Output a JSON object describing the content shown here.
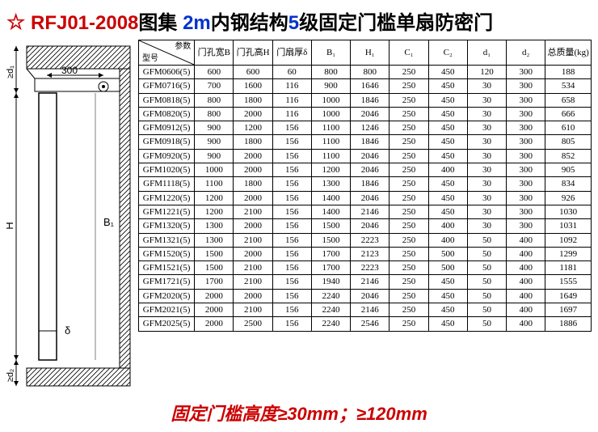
{
  "title": {
    "star": "☆",
    "part1_red": "RFJ01-2008",
    "part1b_black": "图集",
    "part2_blue": "2m",
    "part2b_black": "内钢结构",
    "part3_blue": "5",
    "part3b_black": "级固定门槛单扇防密门"
  },
  "diagram": {
    "dim_300": "300",
    "label_d1": "≥d₁",
    "label_B1": "B₁",
    "label_H": "H",
    "label_delta": "δ",
    "label_d2": "≥d₂",
    "hatch_color": "#000"
  },
  "table": {
    "corner_param": "参数",
    "corner_model": "型号",
    "headers": [
      "门孔宽B",
      "门孔高H",
      "门扇厚δ",
      "B₁",
      "H₁",
      "C₁",
      "C₂",
      "d₁",
      "d₂",
      "总质量(kg)"
    ],
    "rows": [
      [
        "GFM0606(5)",
        "600",
        "600",
        "60",
        "800",
        "800",
        "250",
        "450",
        "120",
        "300",
        "188"
      ],
      [
        "GFM0716(5)",
        "700",
        "1600",
        "116",
        "900",
        "1646",
        "250",
        "450",
        "30",
        "300",
        "534"
      ],
      [
        "GFM0818(5)",
        "800",
        "1800",
        "116",
        "1000",
        "1846",
        "250",
        "450",
        "30",
        "300",
        "658"
      ],
      [
        "GFM0820(5)",
        "800",
        "2000",
        "116",
        "1000",
        "2046",
        "250",
        "450",
        "30",
        "300",
        "666"
      ],
      [
        "GFM0912(5)",
        "900",
        "1200",
        "156",
        "1100",
        "1246",
        "250",
        "450",
        "30",
        "300",
        "610"
      ],
      [
        "GFM0918(5)",
        "900",
        "1800",
        "156",
        "1100",
        "1846",
        "250",
        "450",
        "30",
        "300",
        "805"
      ],
      [
        "GFM0920(5)",
        "900",
        "2000",
        "156",
        "1100",
        "2046",
        "250",
        "450",
        "30",
        "300",
        "852"
      ],
      [
        "GFM1020(5)",
        "1000",
        "2000",
        "156",
        "1200",
        "2046",
        "250",
        "400",
        "30",
        "300",
        "905"
      ],
      [
        "GFM1118(5)",
        "1100",
        "1800",
        "156",
        "1300",
        "1846",
        "250",
        "450",
        "30",
        "300",
        "834"
      ],
      [
        "GFM1220(5)",
        "1200",
        "2000",
        "156",
        "1400",
        "2046",
        "250",
        "450",
        "30",
        "300",
        "926"
      ],
      [
        "GFM1221(5)",
        "1200",
        "2100",
        "156",
        "1400",
        "2146",
        "250",
        "450",
        "30",
        "300",
        "1030"
      ],
      [
        "GFM1320(5)",
        "1300",
        "2000",
        "156",
        "1500",
        "2046",
        "250",
        "400",
        "30",
        "300",
        "1031"
      ],
      [
        "GFM1321(5)",
        "1300",
        "2100",
        "156",
        "1500",
        "2223",
        "250",
        "400",
        "50",
        "400",
        "1092"
      ],
      [
        "GFM1520(5)",
        "1500",
        "2000",
        "156",
        "1700",
        "2123",
        "250",
        "500",
        "50",
        "400",
        "1299"
      ],
      [
        "GFM1521(5)",
        "1500",
        "2100",
        "156",
        "1700",
        "2223",
        "250",
        "500",
        "50",
        "400",
        "1181"
      ],
      [
        "GFM1721(5)",
        "1700",
        "2100",
        "156",
        "1940",
        "2146",
        "250",
        "450",
        "50",
        "400",
        "1555"
      ],
      [
        "GFM2020(5)",
        "2000",
        "2000",
        "156",
        "2240",
        "2046",
        "250",
        "450",
        "50",
        "400",
        "1649"
      ],
      [
        "GFM2021(5)",
        "2000",
        "2100",
        "156",
        "2240",
        "2146",
        "250",
        "450",
        "50",
        "400",
        "1697"
      ],
      [
        "GFM2025(5)",
        "2000",
        "2500",
        "156",
        "2240",
        "2546",
        "250",
        "450",
        "50",
        "400",
        "1886"
      ]
    ]
  },
  "footer": "固定门槛高度≥30mm；≥120mm"
}
